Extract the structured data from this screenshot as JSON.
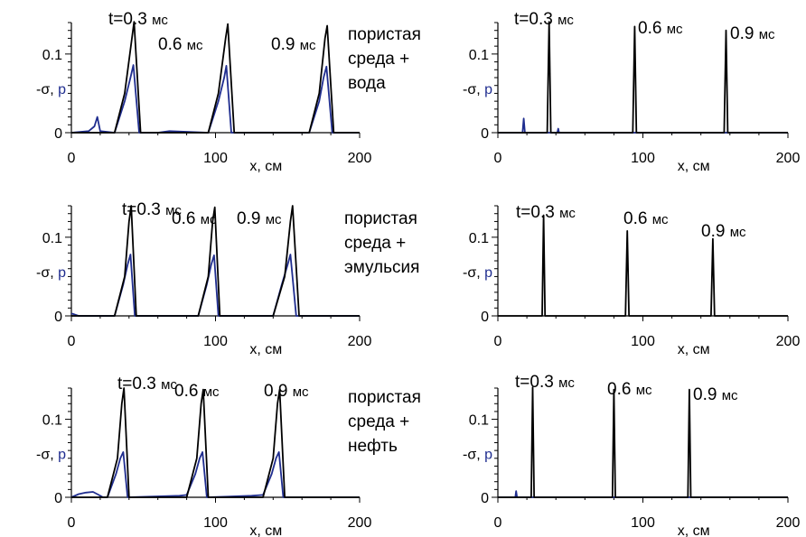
{
  "figure": {
    "colors": {
      "sigma": "#000000",
      "p": "#1f2d8f",
      "axis": "#000000"
    },
    "medium_labels": [
      [
        "пористая",
        "среда +",
        "вода"
      ],
      [
        "пористая",
        "среда +",
        "эмульсия"
      ],
      [
        "пористая",
        "среда +",
        "нефть"
      ]
    ]
  },
  "chart_data": [
    {
      "type": "line",
      "row": 0,
      "col": 0,
      "xlim": [
        0,
        200
      ],
      "ylim": [
        0,
        0.14
      ],
      "xticks": [
        "0",
        "100",
        "200"
      ],
      "xlabel": "x, см",
      "yticks": [
        "0",
        "0.1"
      ],
      "ylabel": "-σ, p",
      "annotations": [
        {
          "text": "t=0.3",
          "unit": "мс"
        },
        {
          "text": "0.6",
          "unit": "мс"
        },
        {
          "text": "0.9",
          "unit": "мс"
        }
      ],
      "series": [
        {
          "key": "sigma",
          "x": [
            0,
            30,
            37,
            42,
            43.5,
            48,
            95,
            102,
            107,
            108.5,
            113,
            165,
            172,
            176,
            177.5,
            182,
            200
          ],
          "y": [
            0,
            0,
            0.05,
            0.12,
            0.141,
            0,
            0,
            0.05,
            0.12,
            0.138,
            0,
            0,
            0.05,
            0.12,
            0.136,
            0,
            0
          ]
        },
        {
          "key": "p",
          "x": [
            0,
            12,
            16,
            18,
            20,
            30,
            37,
            41,
            43,
            47,
            60,
            68,
            95,
            102,
            106,
            107.5,
            111,
            165,
            172,
            175,
            177,
            181,
            200
          ],
          "y": [
            0,
            0.002,
            0.008,
            0.02,
            0.002,
            0,
            0.04,
            0.07,
            0.086,
            0,
            0,
            0.002,
            0,
            0.04,
            0.07,
            0.085,
            0,
            0,
            0.04,
            0.07,
            0.084,
            0,
            0
          ]
        }
      ]
    },
    {
      "type": "line",
      "row": 0,
      "col": 1,
      "xlim": [
        0,
        200
      ],
      "ylim": [
        0,
        0.14
      ],
      "xticks": [
        "0",
        "100",
        "200"
      ],
      "xlabel": "x, см",
      "yticks": [
        "0",
        "0.1"
      ],
      "ylabel": "-σ, p",
      "annotations": [
        {
          "text": "t=0.3",
          "unit": "мс"
        },
        {
          "text": "0.6",
          "unit": "мс"
        },
        {
          "text": "0.9",
          "unit": "мс"
        }
      ],
      "series": [
        {
          "key": "sigma",
          "x": [
            0,
            34,
            35.3,
            36.5,
            93,
            94.3,
            95.5,
            156,
            157.3,
            158.5,
            200
          ],
          "y": [
            0,
            0,
            0.141,
            0,
            0,
            0.135,
            0,
            0,
            0.13,
            0,
            0
          ]
        },
        {
          "key": "p",
          "x": [
            0,
            17,
            17.8,
            18.6,
            41,
            41.6,
            42.2,
            200
          ],
          "y": [
            0,
            0,
            0.018,
            0,
            0,
            0.005,
            0,
            0
          ]
        }
      ]
    },
    {
      "type": "line",
      "row": 1,
      "col": 0,
      "xlim": [
        0,
        200
      ],
      "ylim": [
        0,
        0.14
      ],
      "xticks": [
        "0",
        "100",
        "200"
      ],
      "xlabel": "x, см",
      "yticks": [
        "0",
        "0.1"
      ],
      "ylabel": "-σ, p",
      "annotations": [
        {
          "text": "t=0.3",
          "unit": "мс"
        },
        {
          "text": "0.6",
          "unit": "мс"
        },
        {
          "text": "0.9",
          "unit": "мс"
        }
      ],
      "series": [
        {
          "key": "sigma",
          "x": [
            0,
            30,
            37,
            40,
            41.5,
            45,
            88,
            95,
            98,
            99.5,
            103,
            140,
            148,
            152,
            153.5,
            158,
            200
          ],
          "y": [
            0,
            0,
            0.05,
            0.12,
            0.14,
            0,
            0,
            0.05,
            0.12,
            0.138,
            0,
            0,
            0.05,
            0.12,
            0.14,
            0,
            0
          ]
        },
        {
          "key": "p",
          "x": [
            0,
            2,
            5,
            30,
            36,
            39,
            41,
            44,
            88,
            94,
            97,
            99,
            102,
            140,
            146,
            150,
            152,
            156,
            200
          ],
          "y": [
            0.003,
            0.002,
            0,
            0,
            0.04,
            0.065,
            0.078,
            0,
            0,
            0.04,
            0.065,
            0.077,
            0,
            0,
            0.04,
            0.065,
            0.078,
            0,
            0
          ]
        }
      ]
    },
    {
      "type": "line",
      "row": 1,
      "col": 1,
      "xlim": [
        0,
        200
      ],
      "ylim": [
        0,
        0.14
      ],
      "xticks": [
        "0",
        "100",
        "200"
      ],
      "xlabel": "x, см",
      "yticks": [
        "0",
        "0.1"
      ],
      "ylabel": "-σ, p",
      "annotations": [
        {
          "text": "t=0.3",
          "unit": "мс"
        },
        {
          "text": "0.6",
          "unit": "мс"
        },
        {
          "text": "0.9",
          "unit": "мс"
        }
      ],
      "series": [
        {
          "key": "sigma",
          "x": [
            0,
            30.5,
            31.5,
            32.5,
            88,
            89.2,
            90.4,
            147,
            148.2,
            149.4,
            200
          ],
          "y": [
            0,
            0,
            0.128,
            0,
            0,
            0.108,
            0,
            0,
            0.098,
            0,
            0
          ]
        }
      ]
    },
    {
      "type": "line",
      "row": 2,
      "col": 0,
      "xlim": [
        0,
        200
      ],
      "ylim": [
        0,
        0.14
      ],
      "xticks": [
        "0",
        "100",
        "200"
      ],
      "xlabel": "x, см",
      "yticks": [
        "0",
        "0.1"
      ],
      "ylabel": "-σ, p",
      "annotations": [
        {
          "text": "t=0.3",
          "unit": "мс"
        },
        {
          "text": "0.6",
          "unit": "мс"
        },
        {
          "text": "0.9",
          "unit": "мс"
        }
      ],
      "series": [
        {
          "key": "sigma",
          "x": [
            0,
            25,
            32,
            35,
            36.5,
            40,
            80,
            87,
            90,
            91.5,
            95,
            133,
            140,
            143,
            144.5,
            148,
            200
          ],
          "y": [
            0,
            0,
            0.05,
            0.12,
            0.14,
            0,
            0,
            0.05,
            0.12,
            0.138,
            0,
            0,
            0.05,
            0.12,
            0.138,
            0,
            0
          ]
        },
        {
          "key": "p",
          "x": [
            0,
            5,
            10,
            15,
            18,
            22,
            25,
            31,
            34,
            36,
            39,
            75,
            80,
            86,
            89,
            91,
            94,
            125,
            133,
            139,
            142,
            144,
            147,
            200
          ],
          "y": [
            0,
            0.004,
            0.006,
            0.007,
            0.004,
            0,
            0,
            0.03,
            0.05,
            0.058,
            0,
            0.002,
            0.003,
            0.03,
            0.05,
            0.058,
            0,
            0.002,
            0.003,
            0.03,
            0.05,
            0.058,
            0,
            0
          ]
        }
      ]
    },
    {
      "type": "line",
      "row": 2,
      "col": 1,
      "xlim": [
        0,
        200
      ],
      "ylim": [
        0,
        0.14
      ],
      "xticks": [
        "0",
        "100",
        "200"
      ],
      "xlabel": "x, см",
      "yticks": [
        "0",
        "0.1"
      ],
      "ylabel": "-σ, p",
      "annotations": [
        {
          "text": "t=0.3",
          "unit": "мс"
        },
        {
          "text": "0.6",
          "unit": "мс"
        },
        {
          "text": "0.9",
          "unit": "мс"
        }
      ],
      "series": [
        {
          "key": "sigma",
          "x": [
            0,
            23,
            24,
            25,
            79,
            80,
            81,
            131,
            132,
            133,
            200
          ],
          "y": [
            0,
            0,
            0.141,
            0,
            0,
            0.138,
            0,
            0,
            0.138,
            0,
            0
          ]
        },
        {
          "key": "p",
          "x": [
            0,
            12,
            12.6,
            13.2,
            200
          ],
          "y": [
            0,
            0,
            0.008,
            0,
            0
          ]
        }
      ]
    }
  ]
}
